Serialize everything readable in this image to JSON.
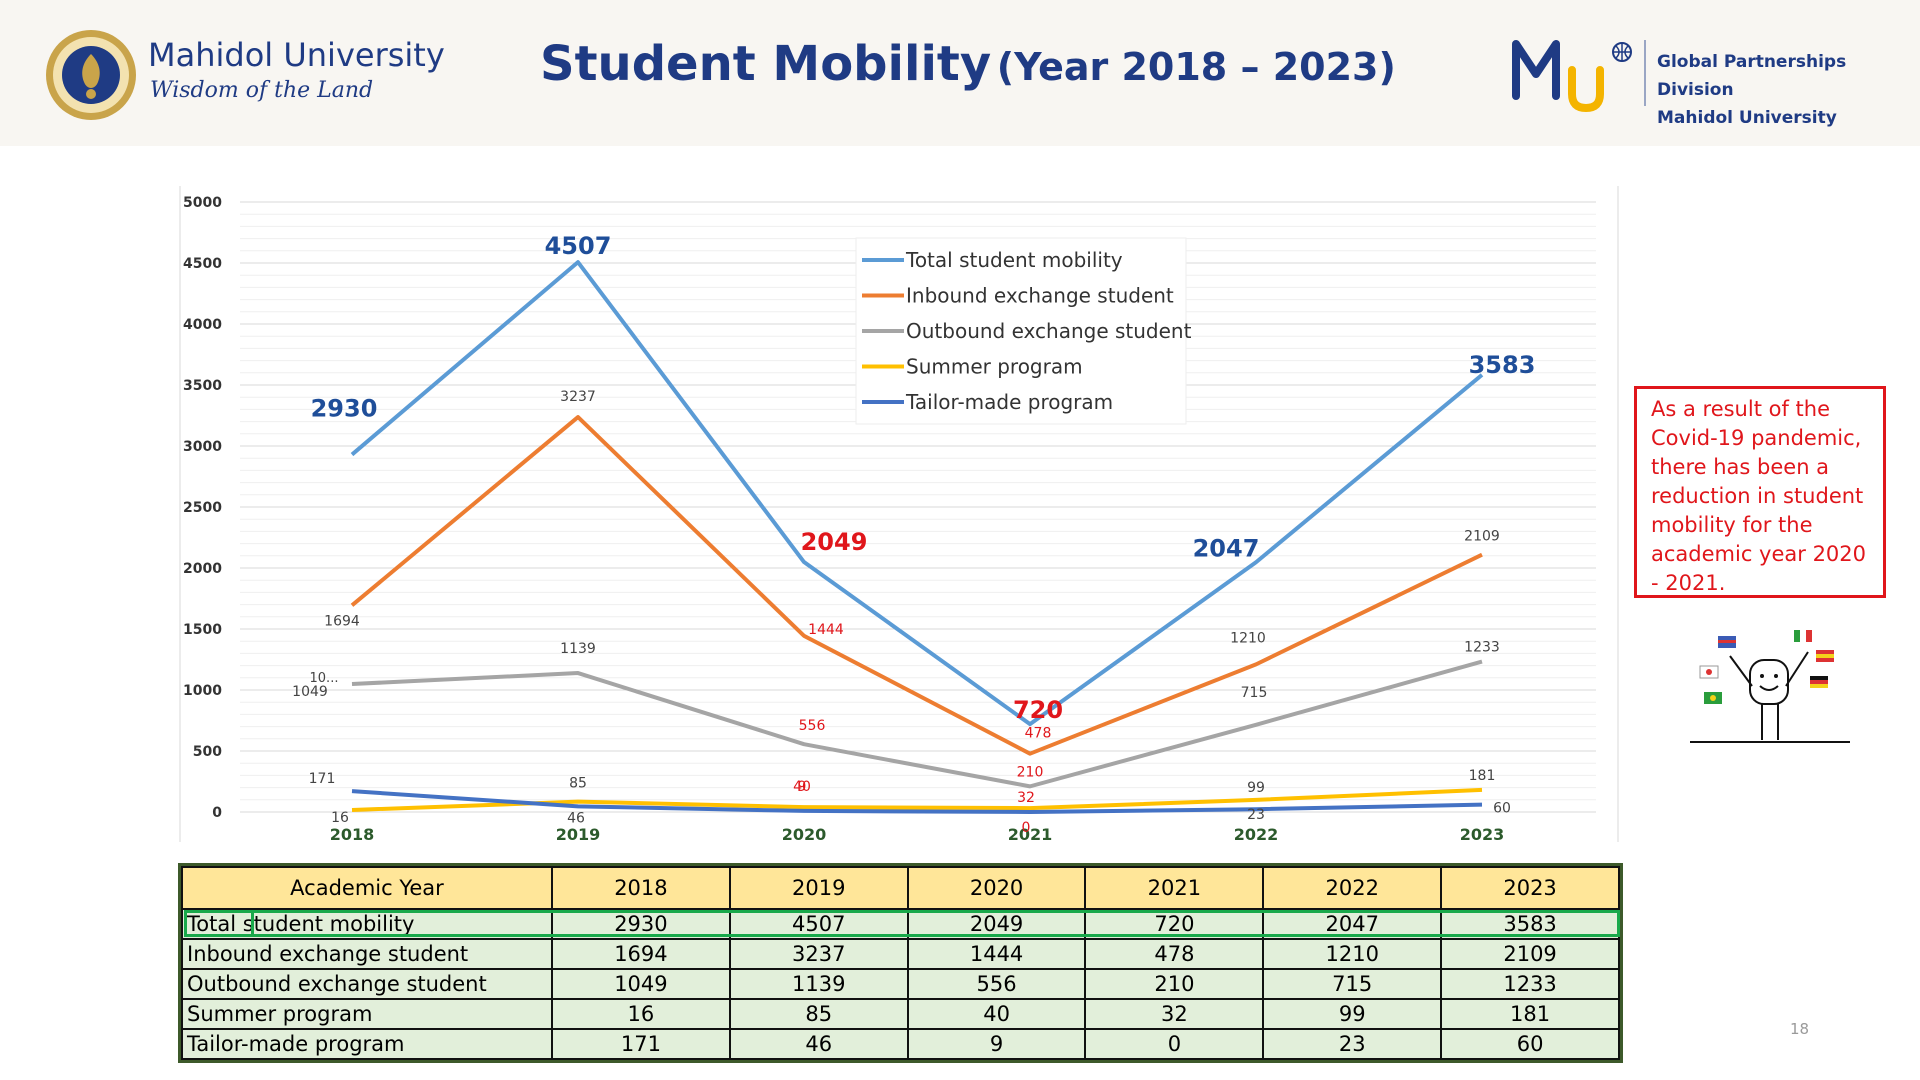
{
  "header": {
    "university_name": "Mahidol University",
    "motto": "Wisdom of the Land",
    "title_main": "Student Mobility",
    "title_years": "(Year 2018 – 2023)",
    "logo_letters": "MU",
    "division_line1": "Global Partnerships Division",
    "division_line2": "Mahidol University",
    "brand_color": "#1f3b84",
    "accent_color": "#f4b400"
  },
  "chart_data": {
    "type": "line",
    "title": "Student Mobility (Year 2018 – 2023)",
    "categories": [
      "2018",
      "2019",
      "2020",
      "2021",
      "2022",
      "2023"
    ],
    "ylim": [
      0,
      5000
    ],
    "yticks": [
      "0",
      "500",
      "1000",
      "1500",
      "2000",
      "2500",
      "3000",
      "3500",
      "4000",
      "4500",
      "5000"
    ],
    "grid": true,
    "legend_position": "top-center",
    "series": [
      {
        "name": "Total student mobility",
        "color": "#5b9bd5",
        "values": [
          2930,
          4507,
          2049,
          720,
          2047,
          3583
        ],
        "labels": [
          "2930",
          "4507",
          "2049",
          "720",
          "2047",
          "3583"
        ]
      },
      {
        "name": "Inbound exchange student",
        "color": "#ed7d31",
        "values": [
          1694,
          3237,
          1444,
          478,
          1210,
          2109
        ],
        "labels": [
          "1694",
          "3237",
          "1444",
          "478",
          "1210",
          "2109"
        ]
      },
      {
        "name": "Outbound exchange student",
        "color": "#a5a5a5",
        "values": [
          1049,
          1139,
          556,
          210,
          715,
          1233
        ],
        "labels": [
          "1049",
          "1139",
          "556",
          "210",
          "715",
          "1233"
        ]
      },
      {
        "name": "Summer program",
        "color": "#ffc000",
        "values": [
          16,
          85,
          40,
          32,
          99,
          181
        ],
        "labels": [
          "16",
          "85",
          "40",
          "32",
          "99",
          "181"
        ]
      },
      {
        "name": "Tailor-made program",
        "color": "#4472c4",
        "values": [
          171,
          46,
          9,
          0,
          23,
          60
        ],
        "labels": [
          "171",
          "46",
          "9",
          "0",
          "23",
          "60"
        ]
      }
    ],
    "extra_labels": {
      "outbound_2018_truncated": "10..."
    }
  },
  "note": {
    "text": "As a result of the Covid-19 pandemic, there has been a reduction in student mobility for the academic year 2020 - 2021."
  },
  "table": {
    "header_label": "Academic Year",
    "years": [
      "2018",
      "2019",
      "2020",
      "2021",
      "2022",
      "2023"
    ],
    "rows": [
      {
        "label": "Total student mobility",
        "values": [
          "2930",
          "4507",
          "2049",
          "720",
          "2047",
          "3583"
        ]
      },
      {
        "label": "Inbound exchange student",
        "values": [
          "1694",
          "3237",
          "1444",
          "478",
          "1210",
          "2109"
        ]
      },
      {
        "label": "Outbound exchange student",
        "values": [
          "1049",
          "1139",
          "556",
          "210",
          "715",
          "1233"
        ]
      },
      {
        "label": "Summer program",
        "values": [
          "16",
          "85",
          "40",
          "32",
          "99",
          "181"
        ]
      },
      {
        "label": "Tailor-made program",
        "values": [
          "171",
          "46",
          "9",
          "0",
          "23",
          "60"
        ]
      }
    ]
  },
  "page_number": "18"
}
